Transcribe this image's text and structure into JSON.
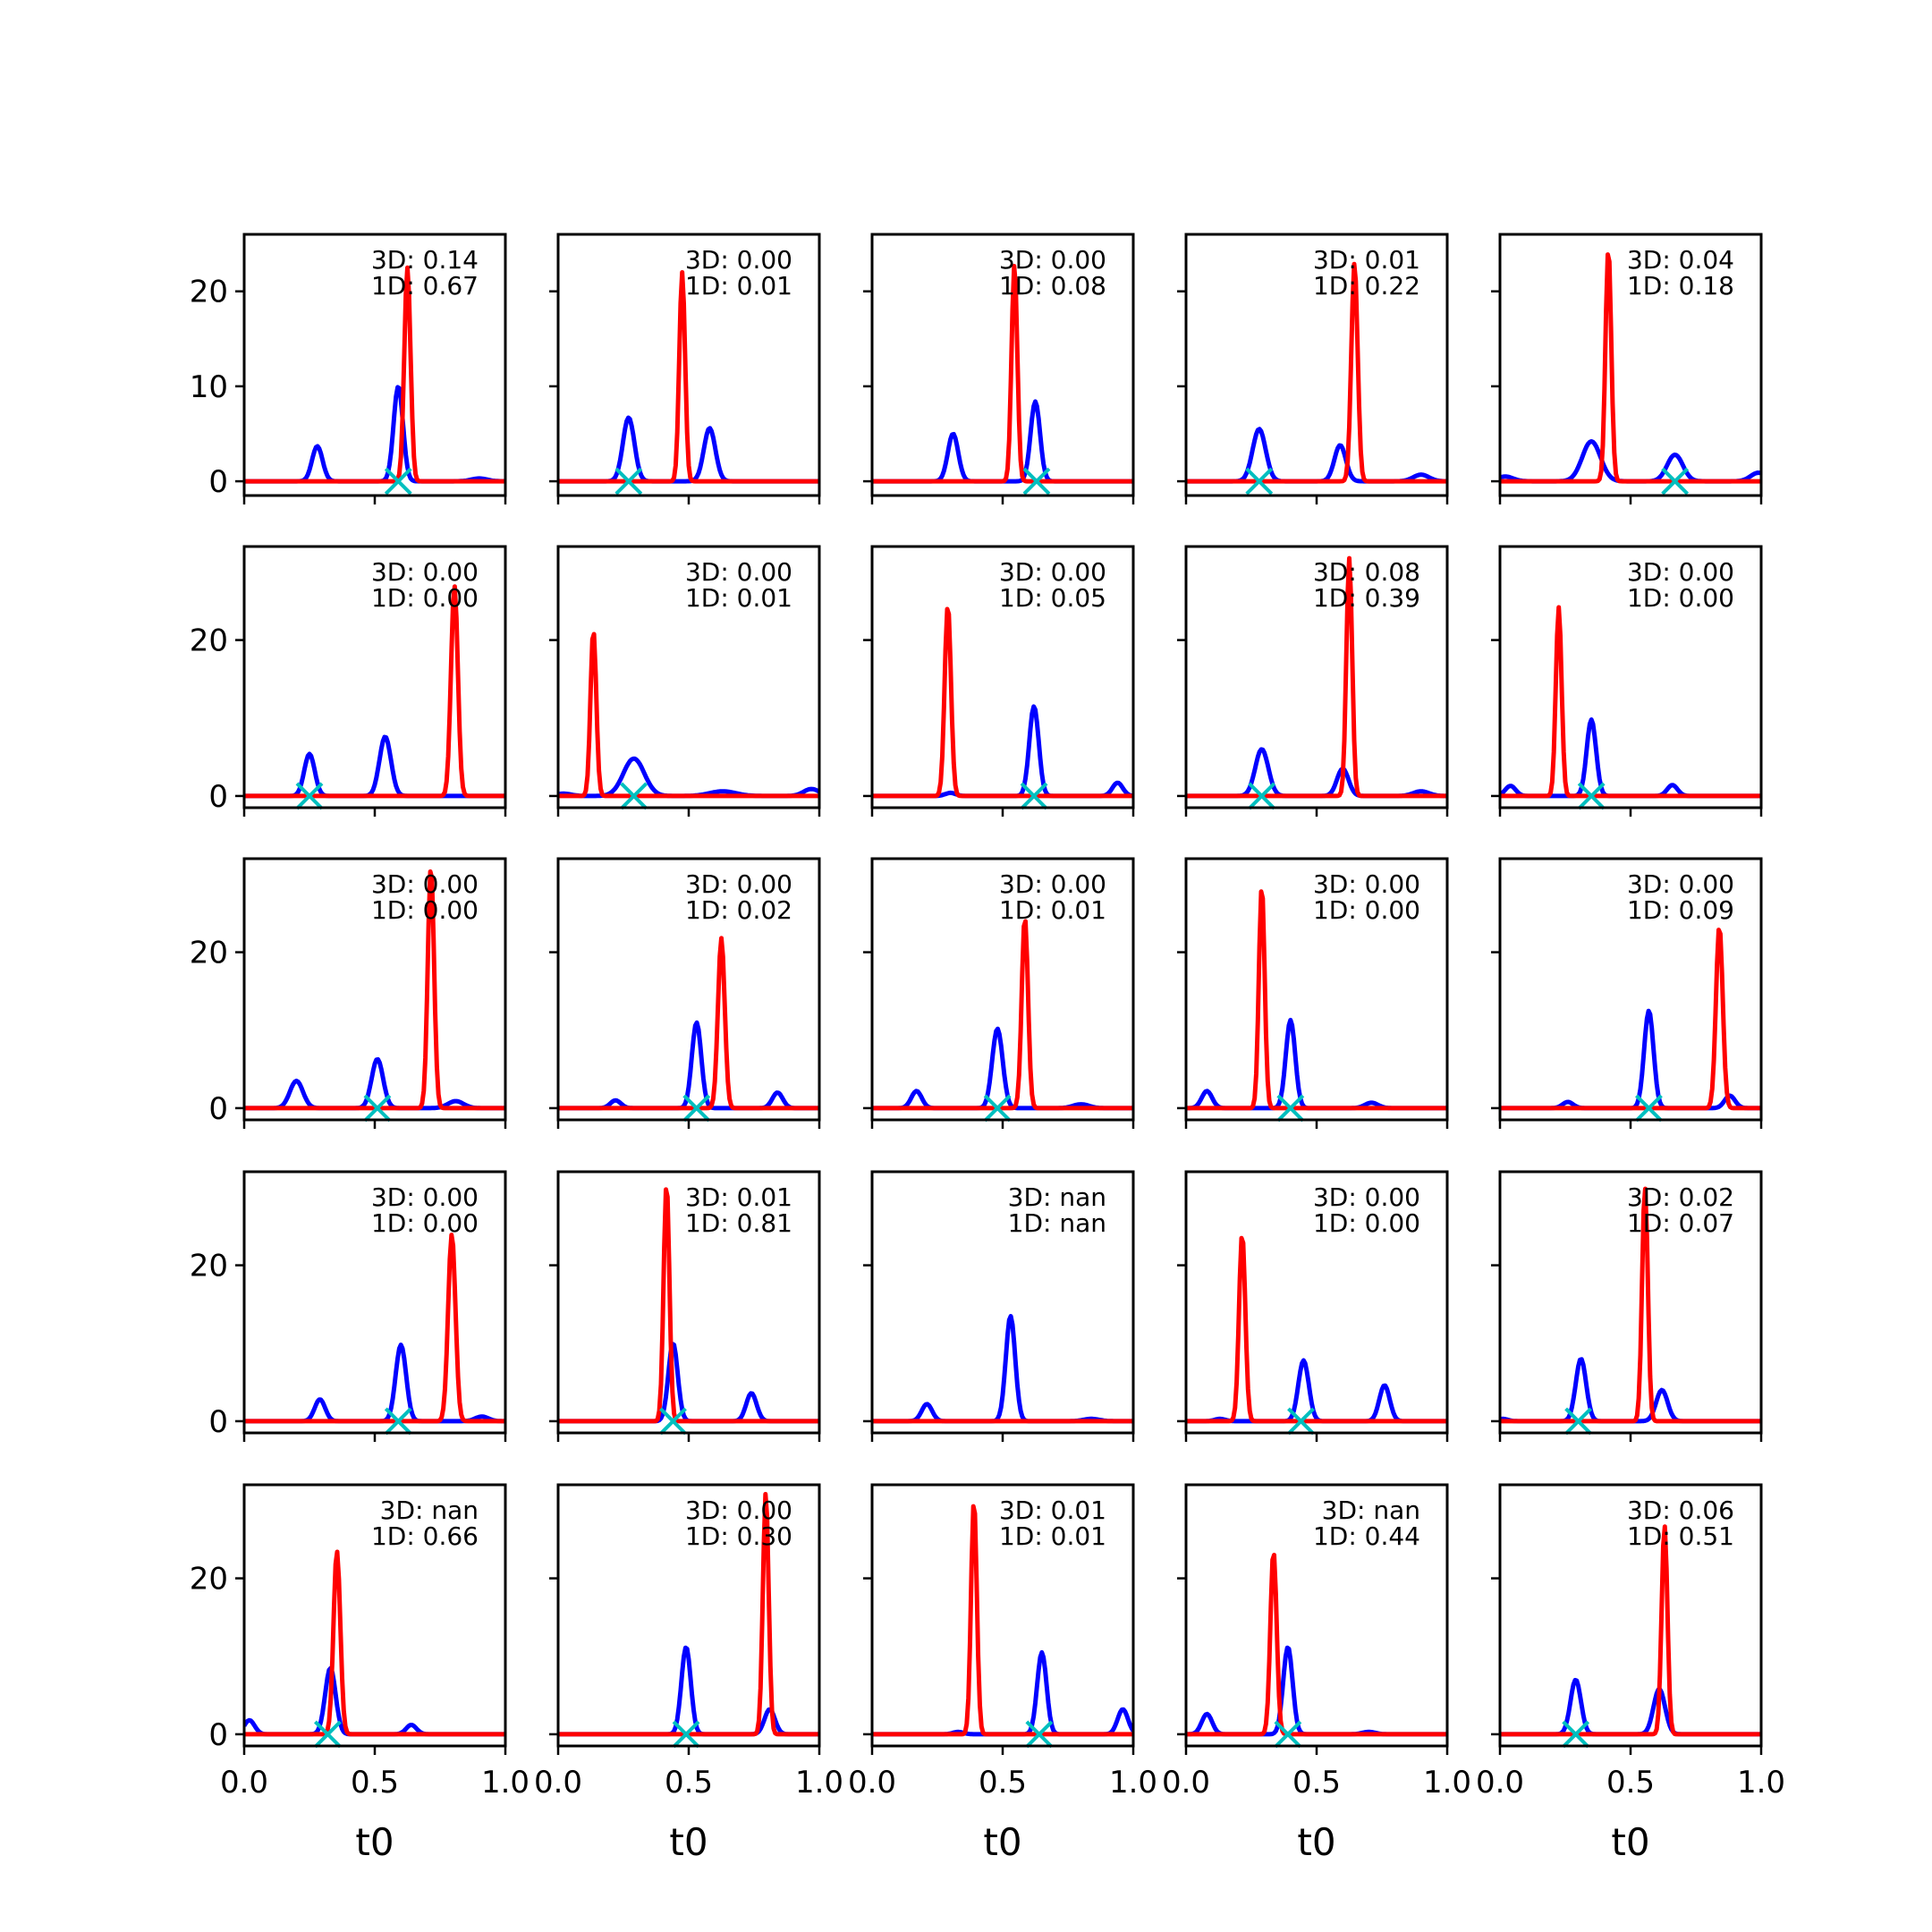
{
  "chart_data": {
    "type": "line",
    "layout": {
      "rows": 5,
      "cols": 5
    },
    "xlabel": "t0",
    "xlim": [
      0,
      1
    ],
    "xticks": [
      0.0,
      0.5,
      1.0
    ],
    "xtick_labels": [
      "0.0",
      "0.5",
      "1.0"
    ],
    "series_colors": {
      "3D": "#0000ff",
      "1D": "#ff0000",
      "marker": "#00bfbf"
    },
    "rows": [
      {
        "ylim": [
          -1.5,
          26
        ],
        "yticks": [
          0,
          10,
          20
        ],
        "ytick_labels": [
          "0",
          "10",
          "20"
        ]
      },
      {
        "ylim": [
          -1.5,
          32
        ],
        "yticks": [
          0,
          20
        ],
        "ytick_labels": [
          "0",
          "20"
        ]
      },
      {
        "ylim": [
          -1.5,
          32
        ],
        "yticks": [
          0,
          20
        ],
        "ytick_labels": [
          "0",
          "20"
        ]
      },
      {
        "ylim": [
          -1.5,
          32
        ],
        "yticks": [
          0,
          20
        ],
        "ytick_labels": [
          "0",
          "20"
        ]
      },
      {
        "ylim": [
          -1.5,
          32
        ],
        "yticks": [
          0,
          20
        ],
        "ytick_labels": [
          "0",
          "20"
        ]
      }
    ],
    "panels": [
      {
        "annotation_3d": "3D: 0.14",
        "annotation_1d": "1D: 0.67",
        "marker_x": 0.59,
        "blue": [
          [
            0.28,
            3.7,
            0.02
          ],
          [
            0.59,
            10.0,
            0.018
          ],
          [
            0.9,
            0.3,
            0.03
          ]
        ],
        "red": [
          [
            0.625,
            22.5,
            0.012
          ]
        ]
      },
      {
        "annotation_3d": "3D: 0.00",
        "annotation_1d": "1D: 0.01",
        "marker_x": 0.27,
        "blue": [
          [
            0.27,
            6.7,
            0.022
          ],
          [
            0.58,
            5.6,
            0.022
          ]
        ],
        "red": [
          [
            0.475,
            22.0,
            0.011
          ]
        ]
      },
      {
        "annotation_3d": "3D: 0.00",
        "annotation_1d": "1D: 0.08",
        "marker_x": 0.63,
        "blue": [
          [
            0.31,
            5.0,
            0.02
          ],
          [
            0.625,
            8.4,
            0.018
          ]
        ],
        "red": [
          [
            0.545,
            22.8,
            0.011
          ]
        ]
      },
      {
        "annotation_3d": "3D: 0.01",
        "annotation_1d": "1D: 0.22",
        "marker_x": 0.28,
        "blue": [
          [
            0.28,
            5.5,
            0.025
          ],
          [
            0.59,
            3.8,
            0.022
          ],
          [
            0.9,
            0.7,
            0.03
          ]
        ],
        "red": [
          [
            0.645,
            23.0,
            0.012
          ]
        ]
      },
      {
        "annotation_3d": "3D: 0.04",
        "annotation_1d": "1D: 0.18",
        "marker_x": 0.67,
        "blue": [
          [
            0.02,
            0.5,
            0.03
          ],
          [
            0.35,
            4.2,
            0.035
          ],
          [
            0.67,
            2.8,
            0.03
          ],
          [
            0.99,
            0.9,
            0.03
          ]
        ],
        "red": [
          [
            0.415,
            24.5,
            0.011
          ]
        ]
      },
      {
        "annotation_3d": "3D: 0.00",
        "annotation_1d": "1D: 0.00",
        "marker_x": 0.25,
        "blue": [
          [
            0.25,
            5.4,
            0.02
          ],
          [
            0.54,
            7.6,
            0.022
          ]
        ],
        "red": [
          [
            0.805,
            27.0,
            0.013
          ]
        ]
      },
      {
        "annotation_3d": "3D: 0.00",
        "annotation_1d": "1D: 0.01",
        "marker_x": 0.29,
        "blue": [
          [
            0.02,
            0.3,
            0.03
          ],
          [
            0.29,
            4.8,
            0.04
          ],
          [
            0.63,
            0.6,
            0.05
          ],
          [
            0.97,
            0.9,
            0.03
          ]
        ],
        "red": [
          [
            0.135,
            21.3,
            0.011
          ]
        ]
      },
      {
        "annotation_3d": "3D: 0.00",
        "annotation_1d": "1D: 0.05",
        "marker_x": 0.62,
        "blue": [
          [
            0.3,
            0.4,
            0.02
          ],
          [
            0.62,
            11.5,
            0.018
          ],
          [
            0.94,
            1.7,
            0.02
          ]
        ],
        "red": [
          [
            0.29,
            24.5,
            0.012
          ]
        ]
      },
      {
        "annotation_3d": "3D: 0.08",
        "annotation_1d": "1D: 0.39",
        "marker_x": 0.29,
        "blue": [
          [
            0.29,
            6.0,
            0.025
          ],
          [
            0.6,
            3.5,
            0.022
          ],
          [
            0.9,
            0.6,
            0.03
          ]
        ],
        "red": [
          [
            0.625,
            30.5,
            0.011
          ]
        ]
      },
      {
        "annotation_3d": "3D: 0.00",
        "annotation_1d": "1D: 0.00",
        "marker_x": 0.35,
        "blue": [
          [
            0.04,
            1.3,
            0.02
          ],
          [
            0.35,
            9.8,
            0.018
          ],
          [
            0.66,
            1.4,
            0.02
          ]
        ],
        "red": [
          [
            0.225,
            24.2,
            0.011
          ]
        ]
      },
      {
        "annotation_3d": "3D: 0.00",
        "annotation_1d": "1D: 0.00",
        "marker_x": 0.51,
        "blue": [
          [
            0.2,
            3.5,
            0.025
          ],
          [
            0.51,
            6.3,
            0.022
          ],
          [
            0.81,
            0.9,
            0.03
          ]
        ],
        "red": [
          [
            0.715,
            31.0,
            0.012
          ]
        ]
      },
      {
        "annotation_3d": "3D: 0.00",
        "annotation_1d": "1D: 0.02",
        "marker_x": 0.53,
        "blue": [
          [
            0.22,
            1.0,
            0.02
          ],
          [
            0.53,
            11.0,
            0.018
          ],
          [
            0.84,
            2.0,
            0.02
          ]
        ],
        "red": [
          [
            0.625,
            21.8,
            0.013
          ]
        ]
      },
      {
        "annotation_3d": "3D: 0.00",
        "annotation_1d": "1D: 0.01",
        "marker_x": 0.48,
        "blue": [
          [
            0.17,
            2.2,
            0.02
          ],
          [
            0.48,
            10.2,
            0.02
          ],
          [
            0.8,
            0.5,
            0.03
          ]
        ],
        "red": [
          [
            0.585,
            24.5,
            0.012
          ]
        ]
      },
      {
        "annotation_3d": "3D: 0.00",
        "annotation_1d": "1D: 0.00",
        "marker_x": 0.4,
        "blue": [
          [
            0.08,
            2.2,
            0.02
          ],
          [
            0.4,
            11.3,
            0.018
          ],
          [
            0.71,
            0.7,
            0.025
          ]
        ],
        "red": [
          [
            0.29,
            28.5,
            0.011
          ]
        ]
      },
      {
        "annotation_3d": "3D: 0.00",
        "annotation_1d": "1D: 0.09",
        "marker_x": 0.57,
        "blue": [
          [
            0.26,
            0.8,
            0.02
          ],
          [
            0.57,
            12.5,
            0.018
          ],
          [
            0.88,
            1.6,
            0.02
          ]
        ],
        "red": [
          [
            0.84,
            23.3,
            0.013
          ]
        ]
      },
      {
        "annotation_3d": "3D: 0.00",
        "annotation_1d": "1D: 0.00",
        "marker_x": 0.59,
        "blue": [
          [
            0.29,
            2.8,
            0.02
          ],
          [
            0.6,
            9.8,
            0.02
          ],
          [
            0.91,
            0.6,
            0.025
          ]
        ],
        "red": [
          [
            0.795,
            24.0,
            0.014
          ]
        ]
      },
      {
        "annotation_3d": "3D: 0.01",
        "annotation_1d": "1D: 0.81",
        "marker_x": 0.44,
        "blue": [
          [
            0.44,
            10.0,
            0.018
          ],
          [
            0.74,
            3.6,
            0.02
          ]
        ],
        "red": [
          [
            0.415,
            30.5,
            0.011
          ]
        ]
      },
      {
        "annotation_3d": "3D: nan",
        "annotation_1d": "1D: nan",
        "marker_x": null,
        "blue": [
          [
            0.21,
            2.2,
            0.02
          ],
          [
            0.53,
            13.5,
            0.018
          ],
          [
            0.84,
            0.3,
            0.03
          ]
        ],
        "red": []
      },
      {
        "annotation_3d": "3D: 0.00",
        "annotation_1d": "1D: 0.00",
        "marker_x": 0.44,
        "blue": [
          [
            0.13,
            0.3,
            0.02
          ],
          [
            0.45,
            7.8,
            0.02
          ],
          [
            0.76,
            4.6,
            0.02
          ]
        ],
        "red": [
          [
            0.215,
            24.0,
            0.012
          ]
        ]
      },
      {
        "annotation_3d": "3D: 0.02",
        "annotation_1d": "1D: 0.07",
        "marker_x": 0.3,
        "blue": [
          [
            0.01,
            0.3,
            0.02
          ],
          [
            0.31,
            8.0,
            0.02
          ],
          [
            0.62,
            4.0,
            0.022
          ]
        ],
        "red": [
          [
            0.555,
            30.0,
            0.011
          ]
        ]
      },
      {
        "annotation_3d": "3D: nan",
        "annotation_1d": "1D: 0.66",
        "marker_x": 0.32,
        "blue": [
          [
            0.02,
            1.8,
            0.02
          ],
          [
            0.33,
            8.5,
            0.02
          ],
          [
            0.64,
            1.2,
            0.02
          ]
        ],
        "red": [
          [
            0.355,
            23.5,
            0.013
          ]
        ]
      },
      {
        "annotation_3d": "3D: 0.00",
        "annotation_1d": "1D: 0.30",
        "marker_x": 0.49,
        "blue": [
          [
            0.49,
            11.2,
            0.018
          ],
          [
            0.81,
            3.2,
            0.02
          ]
        ],
        "red": [
          [
            0.795,
            31.0,
            0.011
          ]
        ]
      },
      {
        "annotation_3d": "3D: 0.01",
        "annotation_1d": "1D: 0.01",
        "marker_x": 0.64,
        "blue": [
          [
            0.33,
            0.3,
            0.02
          ],
          [
            0.65,
            10.5,
            0.018
          ],
          [
            0.96,
            3.2,
            0.02
          ]
        ],
        "red": [
          [
            0.39,
            30.0,
            0.011
          ]
        ]
      },
      {
        "annotation_3d": "3D: nan",
        "annotation_1d": "1D: 0.44",
        "marker_x": 0.39,
        "blue": [
          [
            0.08,
            2.6,
            0.02
          ],
          [
            0.39,
            11.2,
            0.018
          ],
          [
            0.7,
            0.3,
            0.025
          ]
        ],
        "red": [
          [
            0.335,
            23.5,
            0.012
          ]
        ]
      },
      {
        "annotation_3d": "3D: 0.06",
        "annotation_1d": "1D: 0.51",
        "marker_x": 0.29,
        "blue": [
          [
            0.29,
            7.0,
            0.02
          ],
          [
            0.61,
            5.8,
            0.022
          ]
        ],
        "red": [
          [
            0.63,
            26.8,
            0.011
          ]
        ]
      }
    ]
  }
}
